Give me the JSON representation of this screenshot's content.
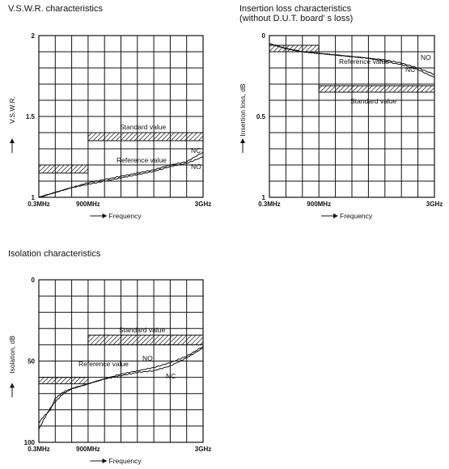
{
  "chart_data": [
    {
      "type": "line",
      "title": "V.S.W.R. characteristics",
      "subtitle": "",
      "ylabel": "V.S.W.R.",
      "xlabel": "Frequency",
      "ylim": [
        1,
        2
      ],
      "y_ticks": [
        "2",
        "1.5",
        "1"
      ],
      "x_ticks": [
        "0.3MHz",
        "900MHz",
        "3GHz"
      ],
      "grid": true,
      "series": [
        {
          "name": "NC",
          "x": [
            0,
            0.1,
            0.2,
            0.3,
            0.4,
            0.5,
            0.6,
            0.7,
            0.8,
            0.9,
            1.0
          ],
          "y": [
            1.0,
            1.03,
            1.06,
            1.09,
            1.11,
            1.13,
            1.15,
            1.17,
            1.2,
            1.22,
            1.28
          ]
        },
        {
          "name": "NO",
          "x": [
            0,
            0.1,
            0.2,
            0.3,
            0.4,
            0.5,
            0.6,
            0.7,
            0.8,
            0.9,
            1.0
          ],
          "y": [
            1.0,
            1.03,
            1.06,
            1.08,
            1.1,
            1.12,
            1.14,
            1.16,
            1.19,
            1.21,
            1.25
          ]
        }
      ],
      "standard_value": {
        "label": "Standard value",
        "bands": [
          {
            "x0": 0,
            "x1": 0.3,
            "y0": 1.15,
            "y1": 1.2
          },
          {
            "x0": 0.3,
            "x1": 1.0,
            "y0": 1.35,
            "y1": 1.4
          }
        ]
      },
      "reference_label": "Reference value",
      "curve_labels": [
        "NC",
        "NO"
      ]
    },
    {
      "type": "line",
      "title": "Insertion loss characteristics",
      "subtitle": "(without D.U.T. board' s loss)",
      "ylabel": "Insertion loss, dB",
      "xlabel": "Frequency",
      "ylim": [
        0,
        1
      ],
      "y_ticks": [
        "0",
        "0.5",
        "1"
      ],
      "x_ticks": [
        "0.3MHz",
        "900MHz",
        "3GHz"
      ],
      "grid": true,
      "series": [
        {
          "name": "NO",
          "x": [
            0,
            0.1,
            0.2,
            0.3,
            0.4,
            0.5,
            0.6,
            0.7,
            0.8,
            0.9,
            1.0
          ],
          "y": [
            0.05,
            0.08,
            0.1,
            0.11,
            0.12,
            0.13,
            0.14,
            0.15,
            0.17,
            0.2,
            0.24
          ]
        },
        {
          "name": "NC",
          "x": [
            0,
            0.1,
            0.2,
            0.3,
            0.4,
            0.5,
            0.6,
            0.7,
            0.8,
            0.9,
            1.0
          ],
          "y": [
            0.05,
            0.08,
            0.1,
            0.11,
            0.12,
            0.13,
            0.14,
            0.16,
            0.18,
            0.21,
            0.26
          ]
        }
      ],
      "standard_value": {
        "label": "Standard value",
        "bands": [
          {
            "x0": 0,
            "x1": 0.3,
            "y0": 0.06,
            "y1": 0.1
          },
          {
            "x0": 0.3,
            "x1": 1.0,
            "y0": 0.31,
            "y1": 0.35
          }
        ]
      },
      "reference_label": "Reference value",
      "curve_labels": [
        "NO",
        "NC"
      ]
    },
    {
      "type": "line",
      "title": "Isolation characteristics",
      "subtitle": "",
      "ylabel": "Isolation, dB",
      "xlabel": "Frequency",
      "ylim": [
        0,
        100
      ],
      "y_ticks": [
        "0",
        "50",
        "100"
      ],
      "x_ticks": [
        "0.3MHz",
        "900MHz",
        "3GHz"
      ],
      "grid": true,
      "series": [
        {
          "name": "NO",
          "x": [
            0,
            0.03,
            0.07,
            0.1,
            0.15,
            0.2,
            0.3,
            0.4,
            0.5,
            0.6,
            0.7,
            0.8,
            0.9,
            1.0
          ],
          "y": [
            88,
            84,
            80,
            73,
            69,
            67,
            64,
            61,
            58,
            56,
            54,
            51,
            47,
            41
          ]
        },
        {
          "name": "NC",
          "x": [
            0,
            0.03,
            0.07,
            0.1,
            0.15,
            0.2,
            0.3,
            0.4,
            0.5,
            0.6,
            0.7,
            0.8,
            0.9,
            1.0
          ],
          "y": [
            92,
            86,
            79,
            75,
            70,
            67,
            64,
            61,
            59,
            57,
            56,
            53,
            48,
            42
          ]
        }
      ],
      "standard_value": {
        "label": "Standard value",
        "bands": [
          {
            "x0": 0,
            "x1": 0.3,
            "y0": 60,
            "y1": 64
          },
          {
            "x0": 0.3,
            "x1": 1.0,
            "y0": 34,
            "y1": 40
          }
        ]
      },
      "reference_label": "Reference value",
      "curve_labels": [
        "NO",
        "NC"
      ]
    }
  ]
}
